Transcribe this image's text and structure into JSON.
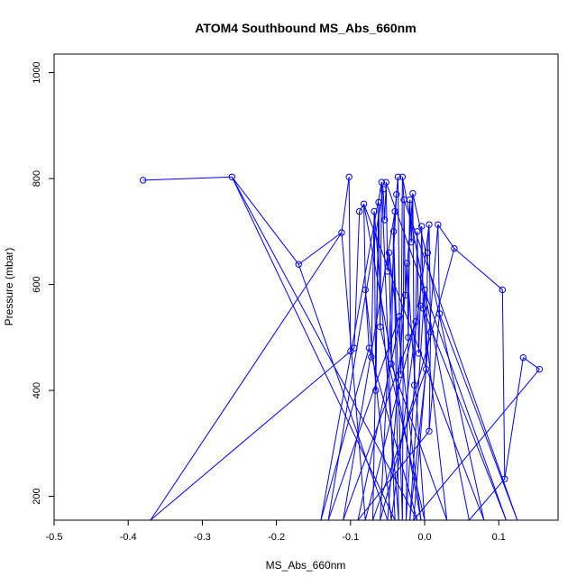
{
  "chart_data": {
    "type": "line",
    "title": "ATOM4 Southbound MS_Abs_660nm",
    "xlabel": "MS_Abs_660nm",
    "ylabel": "Pressure (mbar)",
    "xlim": [
      -0.5,
      0.18
    ],
    "ylim": [
      1035,
      155
    ],
    "y_reversed": true,
    "x_ticks": [
      -0.5,
      -0.4,
      -0.3,
      -0.2,
      -0.1,
      0.0,
      0.1
    ],
    "x_tick_labels": [
      "-0.5",
      "-0.4",
      "-0.3",
      "-0.2",
      "-0.1",
      "0.0",
      "0.1"
    ],
    "y_ticks": [
      200,
      400,
      600,
      800,
      1000
    ],
    "y_tick_labels": [
      "200",
      "400",
      "600",
      "800",
      "1000"
    ],
    "grid": false,
    "legend": "none",
    "series_color": "#0000ff",
    "marker": "open-circle",
    "points": [
      {
        "x": -0.38,
        "y": 797
      },
      {
        "x": -0.26,
        "y": 803
      },
      {
        "x": -0.17,
        "y": 638
      },
      {
        "x": -0.112,
        "y": 698
      },
      {
        "x": -0.102,
        "y": 803
      },
      {
        "x": -0.1,
        "y": 474
      },
      {
        "x": -0.095,
        "y": 480
      },
      {
        "x": -0.088,
        "y": 738
      },
      {
        "x": -0.082,
        "y": 752
      },
      {
        "x": -0.08,
        "y": 590
      },
      {
        "x": -0.075,
        "y": 480
      },
      {
        "x": -0.072,
        "y": 463
      },
      {
        "x": -0.068,
        "y": 738
      },
      {
        "x": -0.066,
        "y": 400
      },
      {
        "x": -0.062,
        "y": 755
      },
      {
        "x": -0.06,
        "y": 520
      },
      {
        "x": -0.058,
        "y": 793
      },
      {
        "x": -0.056,
        "y": 780
      },
      {
        "x": -0.054,
        "y": 722
      },
      {
        "x": -0.052,
        "y": 793
      },
      {
        "x": -0.05,
        "y": 625
      },
      {
        "x": -0.048,
        "y": 660
      },
      {
        "x": -0.045,
        "y": 450
      },
      {
        "x": -0.042,
        "y": 700
      },
      {
        "x": -0.04,
        "y": 738
      },
      {
        "x": -0.038,
        "y": 770
      },
      {
        "x": -0.036,
        "y": 803
      },
      {
        "x": -0.034,
        "y": 540
      },
      {
        "x": -0.032,
        "y": 430
      },
      {
        "x": -0.03,
        "y": 803
      },
      {
        "x": -0.028,
        "y": 760
      },
      {
        "x": -0.026,
        "y": 580
      },
      {
        "x": -0.024,
        "y": 640
      },
      {
        "x": -0.022,
        "y": 500
      },
      {
        "x": -0.02,
        "y": 760
      },
      {
        "x": -0.018,
        "y": 680
      },
      {
        "x": -0.016,
        "y": 772
      },
      {
        "x": -0.014,
        "y": 410
      },
      {
        "x": -0.012,
        "y": 530
      },
      {
        "x": -0.01,
        "y": 700
      },
      {
        "x": -0.008,
        "y": 470
      },
      {
        "x": -0.006,
        "y": 560
      },
      {
        "x": -0.004,
        "y": 710
      },
      {
        "x": -0.002,
        "y": 555
      },
      {
        "x": 0.0,
        "y": 590
      },
      {
        "x": 0.002,
        "y": 440
      },
      {
        "x": 0.004,
        "y": 660
      },
      {
        "x": 0.006,
        "y": 713
      },
      {
        "x": 0.008,
        "y": 510
      },
      {
        "x": 0.006,
        "y": 323
      },
      {
        "x": 0.02,
        "y": 545
      },
      {
        "x": 0.018,
        "y": 713
      },
      {
        "x": 0.04,
        "y": 668
      },
      {
        "x": 0.105,
        "y": 590
      },
      {
        "x": 0.108,
        "y": 233
      },
      {
        "x": 0.133,
        "y": 462
      },
      {
        "x": 0.155,
        "y": 440
      }
    ],
    "off_chart_tops": [
      {
        "x": -0.37,
        "y": 155
      },
      {
        "x": -0.14,
        "y": 155
      },
      {
        "x": -0.13,
        "y": 155
      },
      {
        "x": -0.11,
        "y": 155
      },
      {
        "x": -0.09,
        "y": 155
      },
      {
        "x": -0.08,
        "y": 155
      },
      {
        "x": -0.07,
        "y": 155
      },
      {
        "x": -0.06,
        "y": 155
      },
      {
        "x": -0.05,
        "y": 155
      },
      {
        "x": -0.045,
        "y": 155
      },
      {
        "x": -0.04,
        "y": 155
      },
      {
        "x": -0.035,
        "y": 155
      },
      {
        "x": -0.03,
        "y": 155
      },
      {
        "x": -0.025,
        "y": 155
      },
      {
        "x": -0.02,
        "y": 155
      },
      {
        "x": -0.015,
        "y": 155
      },
      {
        "x": -0.01,
        "y": 155
      },
      {
        "x": -0.005,
        "y": 155
      },
      {
        "x": 0.0,
        "y": 155
      },
      {
        "x": 0.03,
        "y": 155
      },
      {
        "x": 0.06,
        "y": 155
      },
      {
        "x": 0.08,
        "y": 155
      },
      {
        "x": 0.11,
        "y": 155
      },
      {
        "x": 0.125,
        "y": 155
      }
    ]
  }
}
